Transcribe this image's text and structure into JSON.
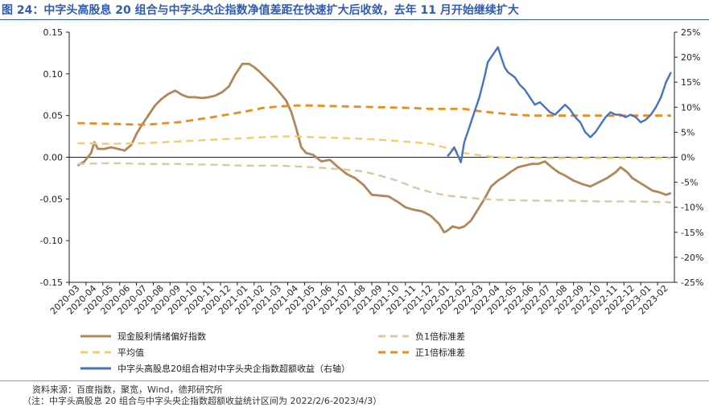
{
  "title": "图 24：中字头高股息 20 组合与中字头央企指数净值差距在快速扩大后收敛，去年 11 月开始继续扩大",
  "source": "资料来源：百度指数，聚宽，Wind，德邦研究所",
  "note": "（注：中字头高股息 20 组合与中字头央企指数超额收益统计区间为 2022/2/6-2023/4/3）",
  "chart_data": {
    "type": "line",
    "x": [
      "2020-03",
      "2020-04",
      "2020-05",
      "2020-06",
      "2020-07",
      "2020-08",
      "2020-09",
      "2020-10",
      "2020-11",
      "2020-12",
      "2021-01",
      "2021-02",
      "2021-03",
      "2021-04",
      "2021-05",
      "2021-06",
      "2021-07",
      "2021-08",
      "2021-09",
      "2021-10",
      "2021-11",
      "2021-12",
      "2022-01",
      "2022-02",
      "2022-03",
      "2022-04",
      "2022-05",
      "2022-06",
      "2022-07",
      "2022-08",
      "2022-09",
      "2022-10",
      "2022-11",
      "2022-12",
      "2023-01",
      "2023-02"
    ],
    "y_left": {
      "range": [
        -0.15,
        0.15
      ],
      "ticks": [
        "0.15",
        "0.10",
        "0.05",
        "0.00",
        "-0.05",
        "-0.10",
        "-0.15"
      ]
    },
    "y_right": {
      "range": [
        -25,
        25
      ],
      "ticks": [
        "25%",
        "20%",
        "15%",
        "10%",
        "5%",
        "0%",
        "-5%",
        "-10%",
        "-15%",
        "-20%",
        "-25%"
      ]
    },
    "colors": {
      "heat": "#b08759",
      "neg_std": "#dcc7a4",
      "avg": "#f3cc6e",
      "pos_std": "#ee8c1b",
      "excess": "#4472c4"
    },
    "legend": [
      {
        "name": "现金股利情绪偏好指数",
        "color": "#b08759",
        "dash": false,
        "position": "bottom-left"
      },
      {
        "name": "负1倍标准差",
        "color": "#dcc7a4",
        "dash": true,
        "position": "bottom-right"
      },
      {
        "name": "平均值",
        "color": "#f3cc6e",
        "dash": true,
        "position": "bottom-left"
      },
      {
        "name": "正1倍标准差",
        "color": "#ee8c1b",
        "dash": true,
        "position": "bottom-right"
      },
      {
        "name": "中字头高股息20组合相对中字头央企指数超额收益（右轴）",
        "color": "#4472c4",
        "dash": false,
        "position": "bottom-left"
      }
    ],
    "series": [
      {
        "name": "现金股利情绪偏好指数",
        "axis": "left",
        "color": "#b08759",
        "points": [
          [
            0,
            -0.01
          ],
          [
            0.4,
            -0.005
          ],
          [
            0.8,
            0.005
          ],
          [
            1.0,
            0.018
          ],
          [
            1.2,
            0.01
          ],
          [
            1.6,
            0.01
          ],
          [
            2.0,
            0.012
          ],
          [
            2.4,
            0.01
          ],
          [
            2.8,
            0.008
          ],
          [
            3.2,
            0.015
          ],
          [
            3.5,
            0.028
          ],
          [
            3.8,
            0.038
          ],
          [
            4.2,
            0.05
          ],
          [
            4.6,
            0.062
          ],
          [
            5.0,
            0.07
          ],
          [
            5.4,
            0.076
          ],
          [
            5.8,
            0.08
          ],
          [
            6.2,
            0.075
          ],
          [
            6.6,
            0.072
          ],
          [
            7.0,
            0.072
          ],
          [
            7.4,
            0.071
          ],
          [
            7.8,
            0.072
          ],
          [
            8.2,
            0.074
          ],
          [
            8.6,
            0.078
          ],
          [
            9.0,
            0.085
          ],
          [
            9.4,
            0.1
          ],
          [
            9.8,
            0.112
          ],
          [
            10.2,
            0.112
          ],
          [
            10.5,
            0.108
          ],
          [
            10.8,
            0.103
          ],
          [
            11.2,
            0.095
          ],
          [
            11.6,
            0.087
          ],
          [
            12.0,
            0.078
          ],
          [
            12.4,
            0.068
          ],
          [
            12.7,
            0.055
          ],
          [
            13.0,
            0.035
          ],
          [
            13.3,
            0.012
          ],
          [
            13.6,
            0.005
          ],
          [
            14.0,
            0.003
          ],
          [
            14.5,
            -0.005
          ],
          [
            15.0,
            -0.003
          ],
          [
            15.5,
            -0.012
          ],
          [
            16.0,
            -0.02
          ],
          [
            16.5,
            -0.025
          ],
          [
            17.0,
            -0.033
          ],
          [
            17.5,
            -0.045
          ],
          [
            18.0,
            -0.046
          ],
          [
            18.5,
            -0.047
          ],
          [
            19.0,
            -0.053
          ],
          [
            19.5,
            -0.06
          ],
          [
            20.0,
            -0.063
          ],
          [
            20.5,
            -0.065
          ],
          [
            21.0,
            -0.07
          ],
          [
            21.5,
            -0.08
          ],
          [
            21.8,
            -0.09
          ],
          [
            22.0,
            -0.088
          ],
          [
            22.3,
            -0.083
          ],
          [
            22.7,
            -0.085
          ],
          [
            23.0,
            -0.083
          ],
          [
            23.4,
            -0.076
          ],
          [
            23.8,
            -0.063
          ],
          [
            24.2,
            -0.05
          ],
          [
            24.6,
            -0.035
          ],
          [
            25.0,
            -0.028
          ],
          [
            25.4,
            -0.023
          ],
          [
            25.8,
            -0.017
          ],
          [
            26.2,
            -0.012
          ],
          [
            26.6,
            -0.01
          ],
          [
            27.0,
            -0.008
          ],
          [
            27.4,
            -0.008
          ],
          [
            27.8,
            -0.005
          ],
          [
            28.2,
            -0.012
          ],
          [
            28.6,
            -0.018
          ],
          [
            29.0,
            -0.022
          ],
          [
            29.5,
            -0.028
          ],
          [
            30.0,
            -0.032
          ],
          [
            30.5,
            -0.035
          ],
          [
            31.0,
            -0.03
          ],
          [
            31.5,
            -0.025
          ],
          [
            32.0,
            -0.018
          ],
          [
            32.3,
            -0.012
          ],
          [
            32.7,
            -0.018
          ],
          [
            33.0,
            -0.025
          ],
          [
            33.4,
            -0.03
          ],
          [
            33.8,
            -0.035
          ],
          [
            34.2,
            -0.04
          ],
          [
            34.6,
            -0.042
          ],
          [
            35.0,
            -0.045
          ],
          [
            35.3,
            -0.043
          ]
        ]
      },
      {
        "name": "负1倍标准差",
        "axis": "left",
        "color": "#dcc7a4",
        "points": [
          [
            0,
            -0.008
          ],
          [
            2,
            -0.007
          ],
          [
            4,
            -0.008
          ],
          [
            6,
            -0.008
          ],
          [
            8,
            -0.009
          ],
          [
            10,
            -0.01
          ],
          [
            12,
            -0.01
          ],
          [
            14,
            -0.012
          ],
          [
            16,
            -0.015
          ],
          [
            17,
            -0.017
          ],
          [
            18,
            -0.022
          ],
          [
            19,
            -0.028
          ],
          [
            20,
            -0.036
          ],
          [
            21,
            -0.042
          ],
          [
            22,
            -0.046
          ],
          [
            23,
            -0.048
          ],
          [
            24,
            -0.05
          ],
          [
            25,
            -0.051
          ],
          [
            27,
            -0.052
          ],
          [
            29,
            -0.052
          ],
          [
            31,
            -0.053
          ],
          [
            33,
            -0.053
          ],
          [
            35.3,
            -0.054
          ]
        ]
      },
      {
        "name": "平均值",
        "axis": "left",
        "color": "#f3cc6e",
        "points": [
          [
            0,
            0.017
          ],
          [
            2,
            0.016
          ],
          [
            4,
            0.017
          ],
          [
            6,
            0.019
          ],
          [
            8,
            0.021
          ],
          [
            10,
            0.023
          ],
          [
            11,
            0.024
          ],
          [
            12,
            0.025
          ],
          [
            13,
            0.025
          ],
          [
            14,
            0.024
          ],
          [
            16,
            0.023
          ],
          [
            18,
            0.021
          ],
          [
            20,
            0.018
          ],
          [
            21,
            0.016
          ],
          [
            22,
            0.011
          ],
          [
            23,
            0.005
          ],
          [
            24,
            0.002
          ],
          [
            25,
            0.0
          ],
          [
            27,
            -0.001
          ],
          [
            29,
            -0.001
          ],
          [
            31,
            -0.001
          ],
          [
            33,
            -0.001
          ],
          [
            35.3,
            -0.001
          ]
        ]
      },
      {
        "name": "正1倍标准差",
        "axis": "left",
        "color": "#ee8c1b",
        "points": [
          [
            0,
            0.041
          ],
          [
            2,
            0.04
          ],
          [
            4,
            0.039
          ],
          [
            6,
            0.042
          ],
          [
            8,
            0.048
          ],
          [
            10,
            0.055
          ],
          [
            11,
            0.059
          ],
          [
            12,
            0.061
          ],
          [
            13,
            0.062
          ],
          [
            14,
            0.062
          ],
          [
            16,
            0.061
          ],
          [
            18,
            0.06
          ],
          [
            20,
            0.059
          ],
          [
            21,
            0.058
          ],
          [
            22,
            0.058
          ],
          [
            23,
            0.058
          ],
          [
            24,
            0.055
          ],
          [
            25,
            0.053
          ],
          [
            26,
            0.051
          ],
          [
            27,
            0.05
          ],
          [
            29,
            0.05
          ],
          [
            31,
            0.05
          ],
          [
            33,
            0.05
          ],
          [
            35.3,
            0.05
          ]
        ]
      },
      {
        "name": "中字头高股息20组合相对中字头央企指数超额收益（右轴）",
        "axis": "right",
        "color": "#4472c4",
        "points": [
          [
            22.0,
            0.2
          ],
          [
            22.2,
            1.0
          ],
          [
            22.4,
            2.0
          ],
          [
            22.6,
            0.5
          ],
          [
            22.8,
            -1.0
          ],
          [
            23.0,
            3.0
          ],
          [
            23.3,
            6.0
          ],
          [
            23.6,
            9.0
          ],
          [
            23.9,
            12.0
          ],
          [
            24.2,
            16.0
          ],
          [
            24.4,
            19.0
          ],
          [
            24.6,
            20.0
          ],
          [
            24.8,
            21.0
          ],
          [
            25.0,
            22.0
          ],
          [
            25.2,
            20.0
          ],
          [
            25.4,
            18.0
          ],
          [
            25.6,
            17.0
          ],
          [
            25.8,
            16.5
          ],
          [
            26.0,
            16.0
          ],
          [
            26.3,
            14.5
          ],
          [
            26.6,
            13.5
          ],
          [
            26.9,
            12.0
          ],
          [
            27.2,
            10.5
          ],
          [
            27.5,
            11.0
          ],
          [
            27.8,
            10.0
          ],
          [
            28.1,
            9.0
          ],
          [
            28.4,
            8.5
          ],
          [
            28.7,
            9.5
          ],
          [
            29.0,
            10.5
          ],
          [
            29.3,
            9.5
          ],
          [
            29.6,
            8.0
          ],
          [
            29.9,
            7.0
          ],
          [
            30.2,
            5.0
          ],
          [
            30.5,
            4.0
          ],
          [
            30.8,
            5.0
          ],
          [
            31.1,
            6.5
          ],
          [
            31.4,
            8.0
          ],
          [
            31.7,
            9.0
          ],
          [
            32.0,
            8.5
          ],
          [
            32.3,
            8.5
          ],
          [
            32.6,
            8.0
          ],
          [
            32.9,
            8.5
          ],
          [
            33.2,
            8.0
          ],
          [
            33.5,
            7.0
          ],
          [
            33.8,
            7.5
          ],
          [
            34.1,
            8.5
          ],
          [
            34.4,
            10.0
          ],
          [
            34.7,
            12.0
          ],
          [
            35.0,
            15.0
          ],
          [
            35.3,
            17.0
          ]
        ]
      }
    ]
  }
}
